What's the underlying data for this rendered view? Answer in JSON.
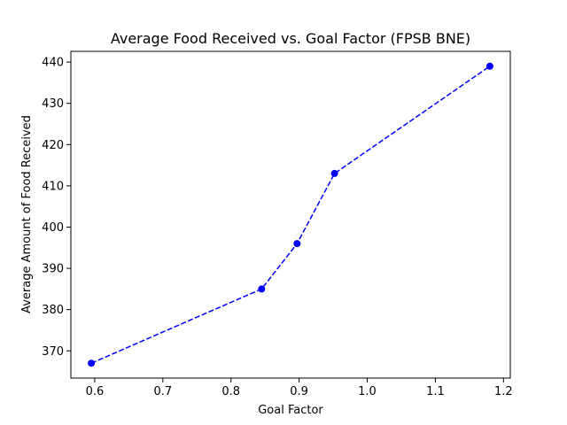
{
  "chart_data": {
    "type": "line",
    "title": "Average Food Received vs. Goal Factor (FPSB BNE)",
    "xlabel": "Goal Factor",
    "ylabel": "Average Amount of Food Received",
    "xlim": [
      0.565,
      1.21
    ],
    "ylim": [
      363.4,
      442.6
    ],
    "x_ticks": [
      0.6,
      0.7,
      0.8,
      0.9,
      1.0,
      1.1,
      1.2
    ],
    "x_tick_labels": [
      "0.6",
      "0.7",
      "0.8",
      "0.9",
      "1.0",
      "1.1",
      "1.2"
    ],
    "y_ticks": [
      370,
      380,
      390,
      400,
      410,
      420,
      430,
      440
    ],
    "y_tick_labels": [
      "370",
      "380",
      "390",
      "400",
      "410",
      "420",
      "430",
      "440"
    ],
    "grid": false,
    "series": [
      {
        "color": "#0000ff",
        "line_style": "dashed",
        "marker": "circle",
        "x": [
          0.595,
          0.845,
          0.897,
          0.952,
          1.18
        ],
        "y": [
          367,
          385,
          396,
          413,
          439
        ]
      }
    ]
  }
}
